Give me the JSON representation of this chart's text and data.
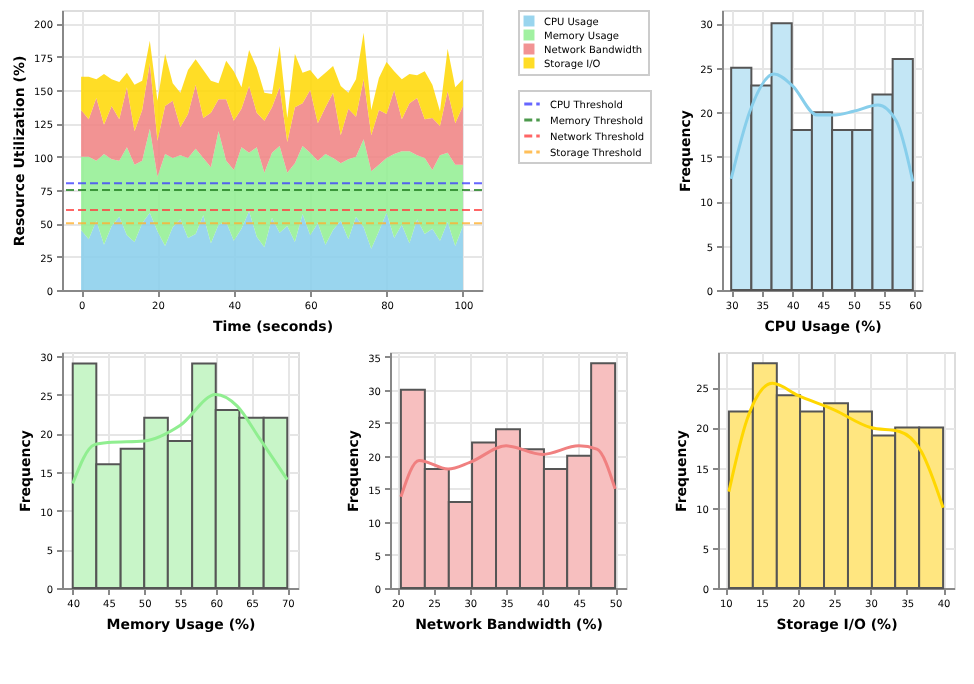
{
  "chart_data": [
    {
      "type": "area",
      "stacked": true,
      "xlabel": "Time (seconds)",
      "ylabel": "Resource Utilization (%)",
      "x": [
        0,
        2,
        4,
        6,
        8,
        10,
        12,
        14,
        16,
        18,
        20,
        22,
        24,
        26,
        28,
        30,
        32,
        34,
        36,
        38,
        40,
        42,
        44,
        46,
        48,
        50,
        52,
        54,
        56,
        58,
        60,
        62,
        64,
        66,
        68,
        70,
        72,
        74,
        76,
        78,
        80,
        82,
        84,
        86,
        88,
        90,
        92,
        94,
        96,
        98,
        100
      ],
      "series": [
        {
          "name": "CPU Usage",
          "color": "#87ceeb",
          "values": [
            45,
            38,
            52,
            34,
            48,
            55,
            41,
            36,
            50,
            58,
            44,
            33,
            47,
            53,
            39,
            42,
            56,
            35,
            49,
            51,
            37,
            46,
            59,
            40,
            32,
            54,
            43,
            48,
            36,
            57,
            41,
            50,
            34,
            45,
            52,
            38,
            55,
            47,
            31,
            44,
            58,
            39,
            49,
            35,
            53,
            42,
            46,
            37,
            51,
            33,
            48
          ]
        },
        {
          "name": "Memory Usage",
          "color": "#90ee90",
          "values": [
            55,
            62,
            45,
            68,
            50,
            42,
            66,
            58,
            47,
            63,
            41,
            69,
            52,
            48,
            60,
            64,
            43,
            57,
            70,
            46,
            53,
            61,
            44,
            67,
            56,
            49,
            65,
            40,
            59,
            51,
            62,
            47,
            68,
            54,
            43,
            60,
            45,
            66,
            58,
            50,
            41,
            63,
            55,
            69,
            48,
            57,
            44,
            64,
            52,
            61,
            46
          ]
        },
        {
          "name": "Network Bandwidth",
          "color": "#f08080",
          "values": [
            35,
            28,
            47,
            22,
            40,
            31,
            45,
            25,
            38,
            49,
            27,
            36,
            43,
            21,
            33,
            48,
            30,
            41,
            24,
            46,
            37,
            29,
            50,
            26,
            39,
            34,
            44,
            23,
            42,
            32,
            47,
            28,
            35,
            49,
            21,
            38,
            30,
            45,
            27,
            41,
            33,
            48,
            24,
            36,
            43,
            29,
            39,
            22,
            46,
            31,
            44
          ]
        },
        {
          "name": "Storage I/O",
          "color": "#ffd700",
          "values": [
            25,
            32,
            14,
            38,
            20,
            28,
            11,
            35,
            22,
            17,
            30,
            39,
            13,
            26,
            33,
            19,
            36,
            24,
            12,
            29,
            37,
            16,
            27,
            34,
            21,
            10,
            31,
            18,
            40,
            23,
            15,
            33,
            26,
            20,
            37,
            12,
            28,
            35,
            19,
            24,
            39,
            14,
            30,
            22,
            17,
            36,
            25,
            11,
            32,
            27,
            20
          ]
        }
      ],
      "ref_lines": [
        {
          "axis": "y",
          "value": 80,
          "label": "CPU Threshold",
          "color": "#4040ff",
          "line_style": "dashed"
        },
        {
          "axis": "y",
          "value": 75,
          "label": "Memory Threshold",
          "color": "#208020",
          "line_style": "dashed"
        },
        {
          "axis": "y",
          "value": 60,
          "label": "Network Threshold",
          "color": "#ff4040",
          "line_style": "dashed"
        },
        {
          "axis": "y",
          "value": 50,
          "label": "Storage Threshold",
          "color": "#ffb030",
          "line_style": "dashed"
        }
      ],
      "xlim": [
        -5,
        105
      ],
      "xticks": [
        0,
        20,
        40,
        60,
        80,
        100
      ],
      "ylim": [
        0,
        210
      ],
      "yticks": [
        0,
        25,
        50,
        75,
        100,
        125,
        150,
        175,
        200
      ],
      "grid": true,
      "legend": "top right"
    },
    {
      "type": "histogram",
      "xlabel": "CPU Usage (%)",
      "ylabel": "Frequency",
      "color": "#c3e6f5",
      "bins": [
        30,
        33.3,
        36.6,
        39.9,
        43.2,
        46.5,
        49.8,
        53.1,
        56.4,
        59.7
      ],
      "values": [
        25,
        23,
        30,
        18,
        20,
        18,
        18,
        22,
        26
      ],
      "series": [
        {
          "type": "line",
          "color": "#87ceeb",
          "x": [
            30,
            33,
            37,
            40,
            44,
            47,
            50,
            54,
            57,
            59.7
          ],
          "values": [
            12.5,
            20,
            24.3,
            23,
            19.7,
            19.7,
            20.1,
            20.8,
            19,
            12.2
          ]
        }
      ],
      "xlim": [
        28.5,
        61.2
      ],
      "xticks": [
        30,
        35,
        40,
        45,
        50,
        55,
        60
      ],
      "ylim": [
        0,
        31.5
      ],
      "yticks": [
        0,
        5,
        10,
        15,
        20,
        25,
        30
      ],
      "grid": true
    },
    {
      "type": "histogram",
      "xlabel": "Memory Usage (%)",
      "ylabel": "Frequency",
      "color": "#c8f5c8",
      "bins": [
        40,
        43.3,
        46.7,
        50,
        53.3,
        56.7,
        60,
        63.3,
        66.7,
        70
      ],
      "values": [
        29,
        16,
        18,
        22,
        19,
        29,
        23,
        22,
        22
      ],
      "series": [
        {
          "type": "line",
          "color": "#90ee90",
          "x": [
            40,
            43,
            45,
            50,
            55,
            60,
            63,
            66,
            70
          ],
          "values": [
            13.5,
            18.5,
            18.8,
            19,
            21,
            25,
            23.5,
            19.5,
            14
          ]
        }
      ],
      "xlim": [
        38.5,
        71.5
      ],
      "xticks": [
        40,
        45,
        50,
        55,
        60,
        65,
        70
      ],
      "ylim": [
        0,
        30.5
      ],
      "yticks": [
        0,
        5,
        10,
        15,
        20,
        25,
        30
      ],
      "grid": true
    },
    {
      "type": "histogram",
      "xlabel": "Network Bandwidth (%)",
      "ylabel": "Frequency",
      "color": "#f7bfbf",
      "bins": [
        20.5,
        23.8,
        27.1,
        30.3,
        33.6,
        36.9,
        40.2,
        43.4,
        46.7,
        50
      ],
      "values": [
        30,
        18,
        13,
        22,
        24,
        21,
        18,
        20,
        34
      ],
      "series": [
        {
          "type": "line",
          "color": "#f08080",
          "x": [
            20.5,
            23,
            27,
            30,
            35,
            40,
            45,
            47.5,
            50
          ],
          "values": [
            13.8,
            19.3,
            18,
            19,
            21.5,
            20.2,
            21.5,
            21,
            15
          ]
        }
      ],
      "xlim": [
        19,
        51.5
      ],
      "xticks": [
        20,
        25,
        30,
        35,
        40,
        45,
        50
      ],
      "ylim": [
        0,
        35.7
      ],
      "yticks": [
        0,
        5,
        10,
        15,
        20,
        25,
        30,
        35
      ],
      "grid": true
    },
    {
      "type": "histogram",
      "xlabel": "Storage I/O (%)",
      "ylabel": "Frequency",
      "color": "#ffe680",
      "bins": [
        10.5,
        13.8,
        17.1,
        20.3,
        23.6,
        26.9,
        30.2,
        33.4,
        36.7,
        40
      ],
      "values": [
        22,
        28,
        24,
        22,
        23,
        22,
        19,
        20,
        20
      ],
      "series": [
        {
          "type": "line",
          "color": "#ffd700",
          "x": [
            10.5,
            13,
            16.5,
            20,
            25,
            30,
            34,
            37,
            40
          ],
          "values": [
            12,
            21,
            25.5,
            24,
            22.2,
            20,
            19.5,
            17,
            10
          ]
        }
      ],
      "xlim": [
        9,
        41.5
      ],
      "xticks": [
        10,
        15,
        20,
        25,
        30,
        35,
        40
      ],
      "ylim": [
        0,
        29.4
      ],
      "yticks": [
        0,
        5,
        10,
        15,
        20,
        25
      ],
      "grid": true
    }
  ]
}
